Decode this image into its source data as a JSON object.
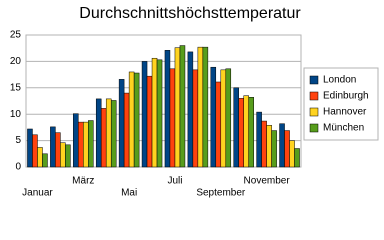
{
  "chart_data": {
    "type": "bar",
    "title": "Durchschnittshöchsttemperatur",
    "categories": [
      "Januar",
      null,
      "März",
      null,
      "Mai",
      null,
      "Juli",
      null,
      "September",
      null,
      "November",
      null
    ],
    "series": [
      {
        "name": "London",
        "color": "#004586",
        "values": [
          7.2,
          7.6,
          10.1,
          12.9,
          16.6,
          20.0,
          22.1,
          21.8,
          18.9,
          15.0,
          10.4,
          8.2
        ]
      },
      {
        "name": "Edinburgh",
        "color": "#ff420e",
        "values": [
          6.1,
          6.5,
          8.5,
          11.1,
          14.0,
          17.2,
          18.6,
          18.4,
          16.1,
          13.0,
          8.7,
          6.9
        ]
      },
      {
        "name": "Hannover",
        "color": "#ffd320",
        "values": [
          3.7,
          4.6,
          8.5,
          12.9,
          18.0,
          20.6,
          22.6,
          22.7,
          18.4,
          13.5,
          7.9,
          5.0
        ]
      },
      {
        "name": "München",
        "color": "#579d1c",
        "values": [
          2.5,
          4.2,
          8.8,
          12.6,
          17.8,
          20.3,
          23.0,
          22.7,
          18.6,
          13.2,
          6.9,
          3.5
        ]
      }
    ],
    "ylim": [
      0,
      25
    ],
    "yticks": [
      0,
      5,
      10,
      15,
      20,
      25
    ],
    "grid": true,
    "legend": "right"
  }
}
